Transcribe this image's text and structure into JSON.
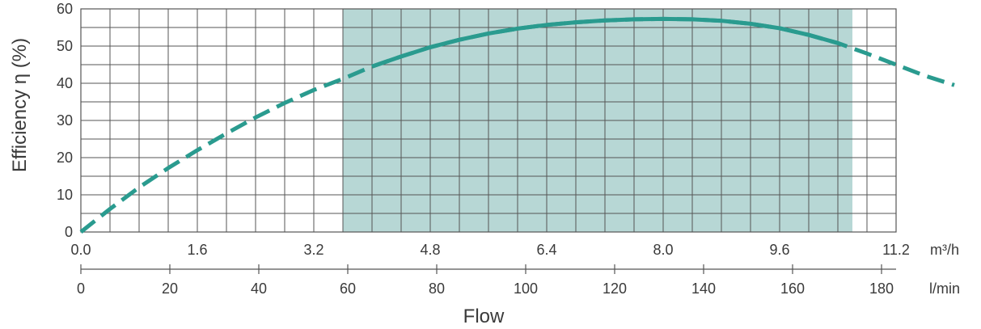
{
  "chart_data": {
    "type": "line",
    "ylabel": "Efficiency η (%)",
    "xlabel": "Flow",
    "ylim": [
      0,
      60
    ],
    "yticks": [
      0,
      10,
      20,
      30,
      40,
      50,
      60
    ],
    "x_axis_primary": {
      "unit_label": "m³/h",
      "xlim": [
        0,
        11.2
      ],
      "ticks": [
        "0.0",
        "1.6",
        "3.2",
        "4.8",
        "6.4",
        "8.0",
        "9.6",
        "11.2"
      ]
    },
    "x_axis_secondary": {
      "unit_label": "l/min",
      "ticks": [
        "0",
        "20",
        "40",
        "60",
        "80",
        "100",
        "120",
        "140",
        "160",
        "180"
      ]
    },
    "grid": true,
    "highlight_region": {
      "x_start": 3.6,
      "x_end": 10.6,
      "color": "#b7d7d5"
    },
    "series": [
      {
        "color": "#2a9b8f",
        "points": [
          [
            0.0,
            0
          ],
          [
            0.4,
            6.2
          ],
          [
            0.8,
            12
          ],
          [
            1.2,
            17.2
          ],
          [
            1.6,
            22
          ],
          [
            2.0,
            26.5
          ],
          [
            2.4,
            30.8
          ],
          [
            2.8,
            34.7
          ],
          [
            3.2,
            38.2
          ],
          [
            3.6,
            41.2
          ],
          [
            4.0,
            44.5
          ],
          [
            4.4,
            47.2
          ],
          [
            4.8,
            49.7
          ],
          [
            5.2,
            51.7
          ],
          [
            5.6,
            53.4
          ],
          [
            6.0,
            54.7
          ],
          [
            6.4,
            55.7
          ],
          [
            6.8,
            56.4
          ],
          [
            7.2,
            56.9
          ],
          [
            7.6,
            57.2
          ],
          [
            8.0,
            57.3
          ],
          [
            8.4,
            57.2
          ],
          [
            8.8,
            56.8
          ],
          [
            9.2,
            56.0
          ],
          [
            9.6,
            54.8
          ],
          [
            10.0,
            53.0
          ],
          [
            10.4,
            50.8
          ],
          [
            10.8,
            48.0
          ],
          [
            11.2,
            45.0
          ],
          [
            11.6,
            42.0
          ],
          [
            12.0,
            39.5
          ]
        ],
        "solid_range": [
          4.0,
          10.6
        ]
      }
    ]
  }
}
